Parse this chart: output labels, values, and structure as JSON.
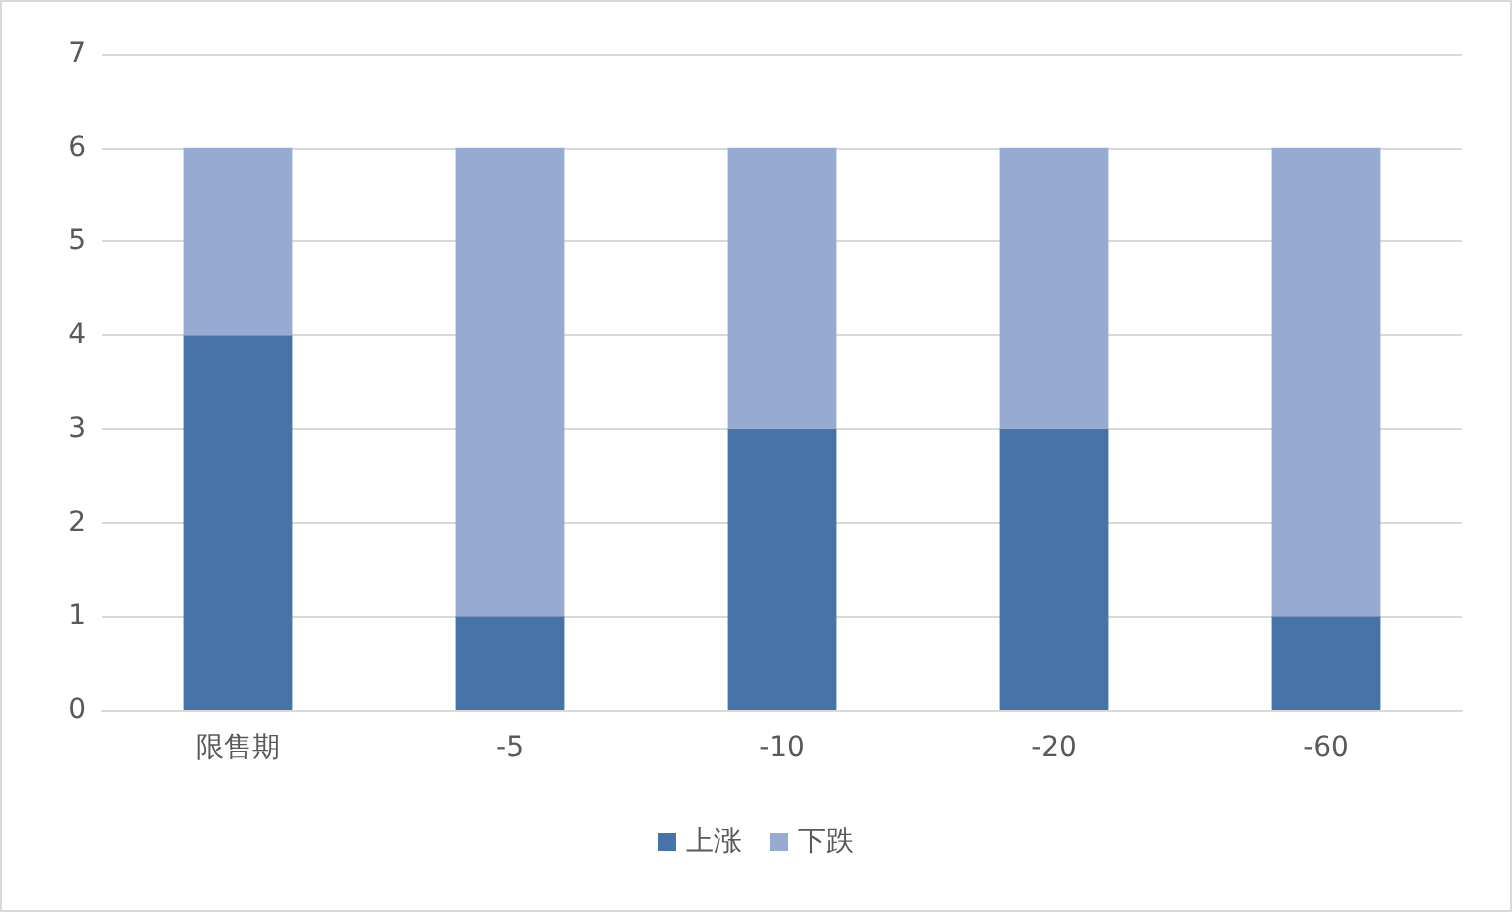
{
  "chart_data": {
    "type": "bar",
    "categories": [
      "限售期",
      "-5",
      "-10",
      "-20",
      "-60"
    ],
    "stacked": true,
    "series": [
      {
        "name": "上涨",
        "color": "#4674a9",
        "values": [
          4,
          1,
          3,
          3,
          1
        ]
      },
      {
        "name": "下跌",
        "color": "#96aad2",
        "values": [
          2,
          5,
          3,
          3,
          5
        ]
      }
    ],
    "ylim": [
      0,
      7
    ],
    "yticks": [
      0,
      1,
      2,
      3,
      4,
      5,
      6,
      7
    ],
    "grid": "y",
    "legend": "bottom"
  }
}
